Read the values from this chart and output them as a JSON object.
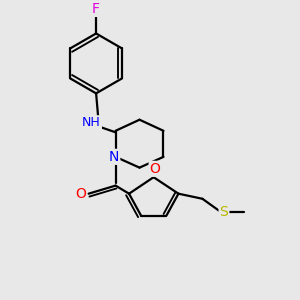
{
  "background_color": "#e8e8e8",
  "bond_color": "#000000",
  "atom_colors": {
    "F": "#e000e0",
    "N": "#0000ff",
    "NH": "#0000ff",
    "H": "#008080",
    "O": "#ff0000",
    "S": "#b8b800",
    "C": "#000000"
  },
  "line_width": 1.6,
  "font_size": 9,
  "figsize": [
    3.0,
    3.0
  ],
  "dpi": 100,
  "xlim": [
    0,
    10
  ],
  "ylim": [
    0,
    10
  ]
}
